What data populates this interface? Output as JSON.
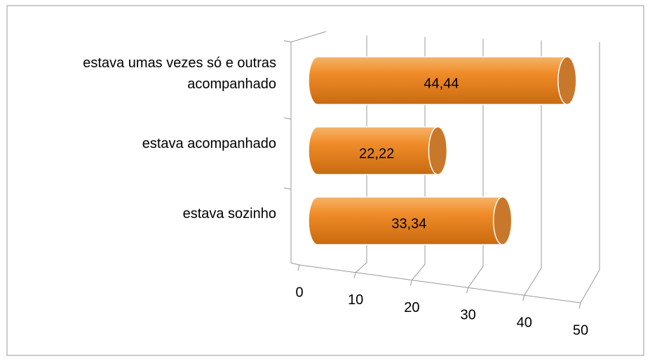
{
  "chart_data": {
    "type": "bar3d",
    "orientation": "horizontal",
    "categories": [
      "estava sozinho",
      "estava acompanhado",
      "estava umas vezes só e outras acompanhado"
    ],
    "values": [
      33.34,
      22.22,
      44.44
    ],
    "value_labels": [
      "33,34",
      "22,22",
      "44,44"
    ],
    "color": "#f08c28",
    "xlim": [
      0,
      50
    ],
    "xticks": [
      0,
      10,
      20,
      30,
      40,
      50
    ],
    "grid": true
  }
}
